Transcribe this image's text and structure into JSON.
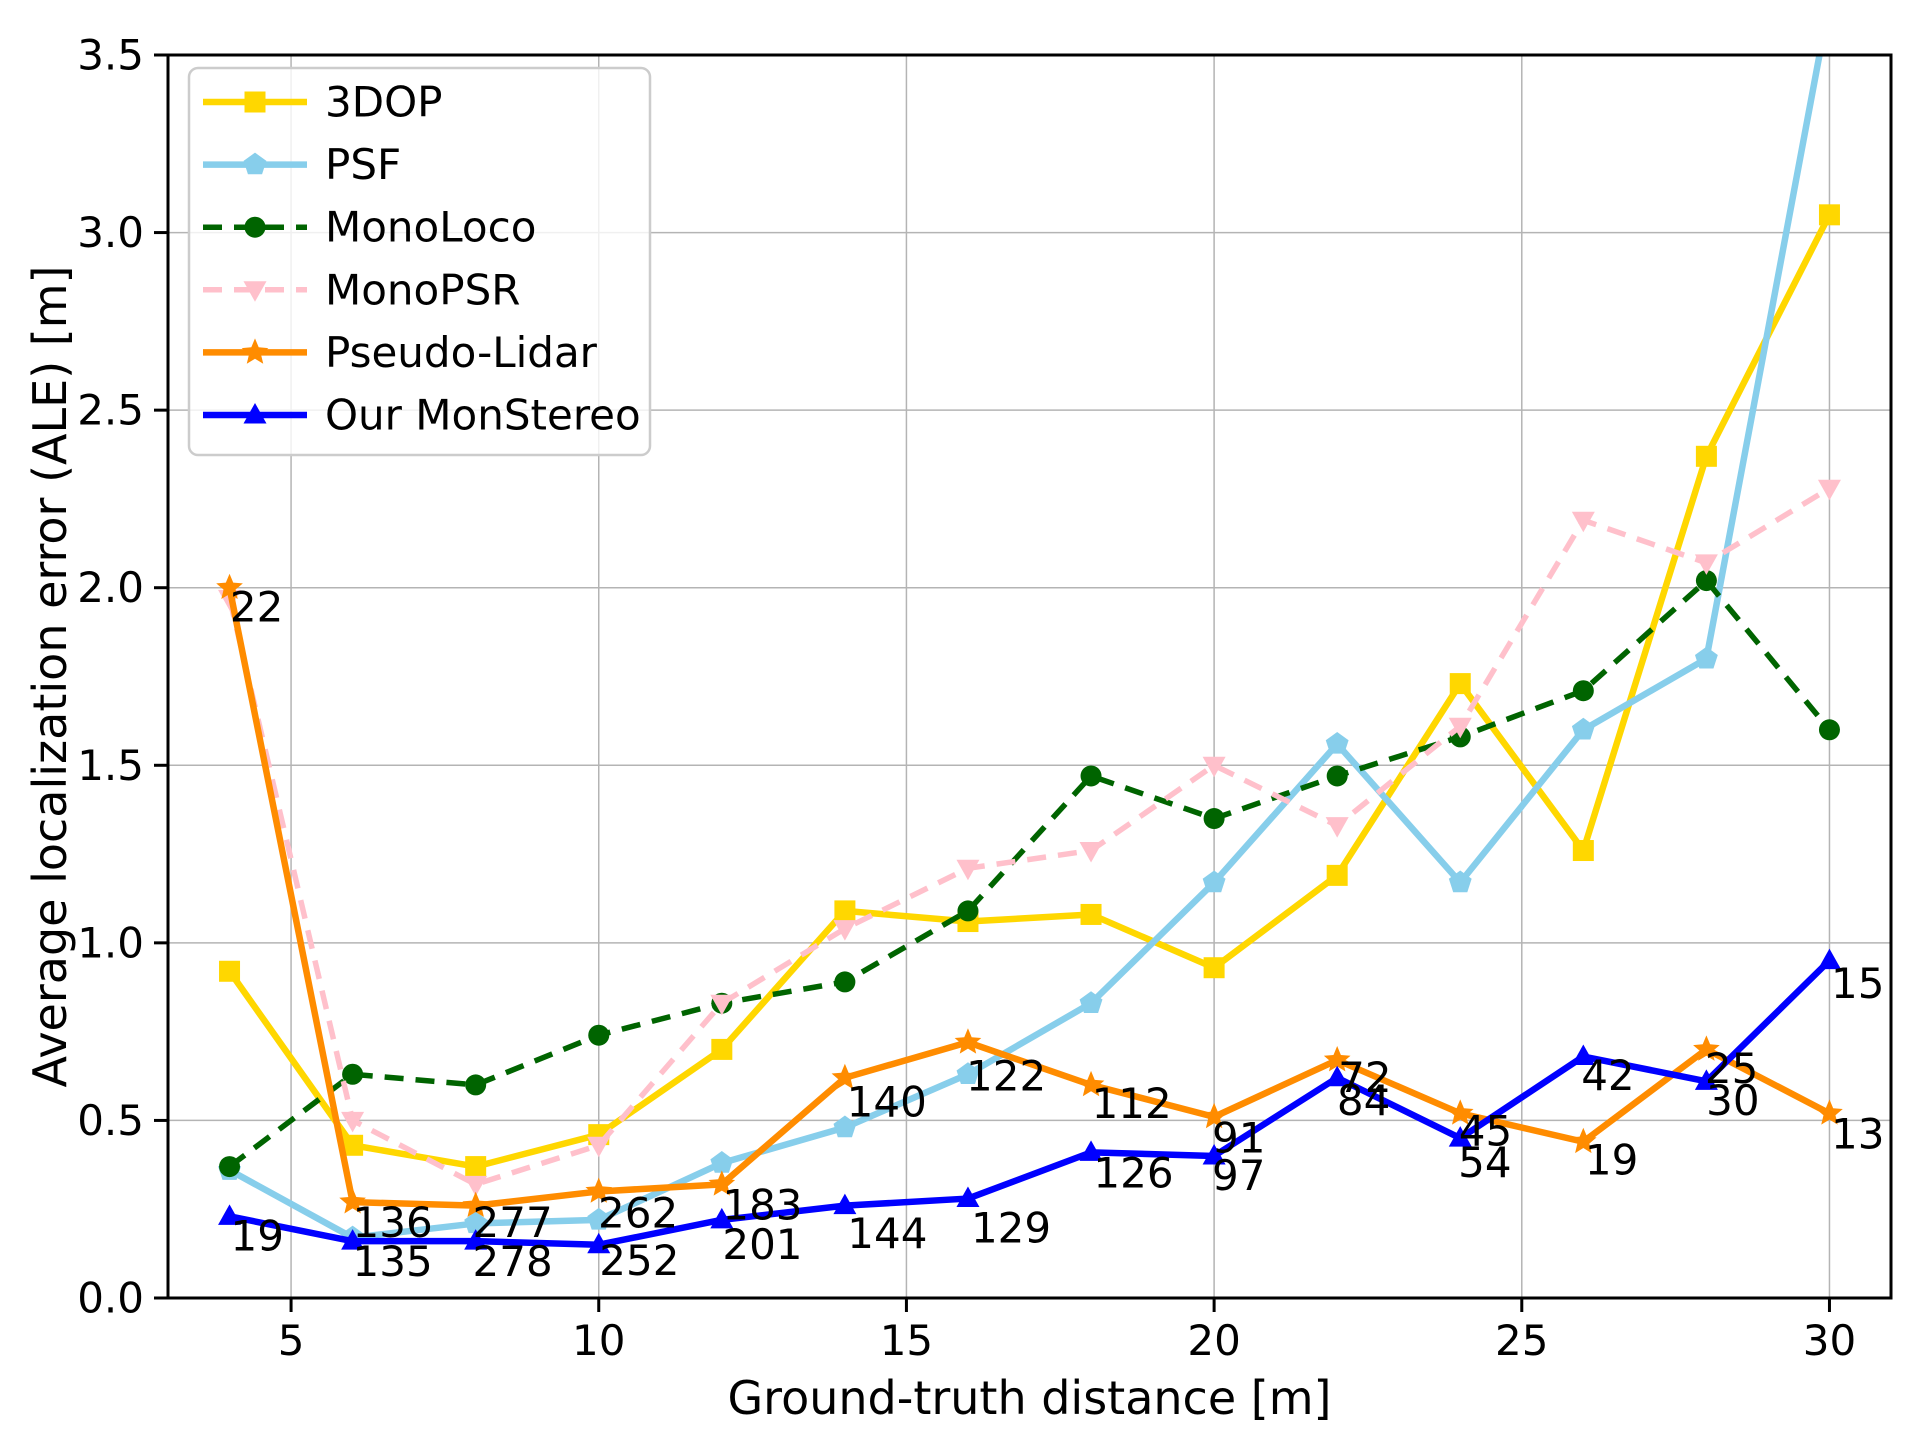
{
  "figure": {
    "background": "#ffffff",
    "text_color": "#000000",
    "grid_color": "#b4b4b4",
    "spine_color": "#000000",
    "legend_border_color": "#cccccc",
    "legend_background": "rgba(255,255,255,0.8)"
  },
  "chart_data": {
    "type": "line",
    "title": "",
    "xlabel": "Ground-truth distance [m]",
    "ylabel": "Average localization error (ALE) [m]",
    "xlim": [
      3.0,
      31.0
    ],
    "ylim": [
      0.0,
      3.5
    ],
    "xticks": [
      5,
      10,
      15,
      20,
      25,
      30
    ],
    "yticks": [
      0.0,
      0.5,
      1.0,
      1.5,
      2.0,
      2.5,
      3.0,
      3.5
    ],
    "grid": true,
    "legend_position": "upper-left",
    "x": [
      4,
      6,
      8,
      10,
      12,
      14,
      16,
      18,
      20,
      22,
      24,
      26,
      28,
      30
    ],
    "series": [
      {
        "name": "3DOP",
        "color": "#FFD700",
        "marker": "square",
        "dash": "solid",
        "values": [
          0.92,
          0.43,
          0.37,
          0.46,
          0.7,
          1.09,
          1.06,
          1.08,
          0.93,
          1.19,
          1.73,
          1.26,
          2.37,
          3.05
        ]
      },
      {
        "name": "PSF",
        "color": "#87CEEB",
        "marker": "pentagon",
        "dash": "solid",
        "values": [
          0.36,
          0.17,
          0.21,
          0.22,
          0.38,
          0.48,
          0.63,
          0.83,
          1.17,
          1.56,
          1.17,
          1.6,
          1.8,
          3.65
        ]
      },
      {
        "name": "MonoLoco",
        "color": "#006400",
        "marker": "circle",
        "dash": "dashed",
        "values": [
          0.37,
          0.63,
          0.6,
          0.74,
          0.83,
          0.89,
          1.09,
          1.47,
          1.35,
          1.47,
          1.58,
          1.71,
          2.02,
          1.6
        ]
      },
      {
        "name": "MonoPSR",
        "color": "#FFC0CB",
        "marker": "triangle-down",
        "dash": "dashed",
        "values": [
          1.97,
          0.5,
          0.32,
          0.43,
          0.83,
          1.04,
          1.21,
          1.26,
          1.5,
          1.33,
          1.61,
          2.19,
          2.07,
          2.28
        ]
      },
      {
        "name": "Pseudo-Lidar",
        "color": "#FF8C00",
        "marker": "star",
        "dash": "solid",
        "values": [
          2.0,
          0.27,
          0.26,
          0.3,
          0.32,
          0.62,
          0.72,
          0.6,
          0.51,
          0.67,
          0.52,
          0.44,
          0.7,
          0.52
        ]
      },
      {
        "name": "Our MonStereo",
        "color": "#0000FF",
        "marker": "triangle-up",
        "dash": "solid",
        "values": [
          0.23,
          0.16,
          0.16,
          0.15,
          0.22,
          0.26,
          0.28,
          0.41,
          0.4,
          0.62,
          0.45,
          0.68,
          0.61,
          0.95
        ]
      }
    ],
    "annotations": [
      {
        "text": "22",
        "x": 4.44,
        "y": 1.945
      },
      {
        "text": "19",
        "x": 4.45,
        "y": 0.175
      },
      {
        "text": "136",
        "x": 6.65,
        "y": 0.212
      },
      {
        "text": "135",
        "x": 6.65,
        "y": 0.103
      },
      {
        "text": "277",
        "x": 8.6,
        "y": 0.212
      },
      {
        "text": "278",
        "x": 8.6,
        "y": 0.103
      },
      {
        "text": "262",
        "x": 10.64,
        "y": 0.24
      },
      {
        "text": "252",
        "x": 10.66,
        "y": 0.105
      },
      {
        "text": "183",
        "x": 12.66,
        "y": 0.262
      },
      {
        "text": "201",
        "x": 12.66,
        "y": 0.15
      },
      {
        "text": "140",
        "x": 14.68,
        "y": 0.552
      },
      {
        "text": "144",
        "x": 14.69,
        "y": 0.182
      },
      {
        "text": "122",
        "x": 16.62,
        "y": 0.625
      },
      {
        "text": "129",
        "x": 16.7,
        "y": 0.197
      },
      {
        "text": "112",
        "x": 18.66,
        "y": 0.548
      },
      {
        "text": "126",
        "x": 18.69,
        "y": 0.352
      },
      {
        "text": "91",
        "x": 20.4,
        "y": 0.45
      },
      {
        "text": "97",
        "x": 20.4,
        "y": 0.345
      },
      {
        "text": "72",
        "x": 22.45,
        "y": 0.621
      },
      {
        "text": "84",
        "x": 22.43,
        "y": 0.556
      },
      {
        "text": "45",
        "x": 24.41,
        "y": 0.47
      },
      {
        "text": "54",
        "x": 24.4,
        "y": 0.382
      },
      {
        "text": "42",
        "x": 26.4,
        "y": 0.627
      },
      {
        "text": "19",
        "x": 26.46,
        "y": 0.388
      },
      {
        "text": "25",
        "x": 28.41,
        "y": 0.646
      },
      {
        "text": "30",
        "x": 28.43,
        "y": 0.556
      },
      {
        "text": "15",
        "x": 30.46,
        "y": 0.886
      },
      {
        "text": "13",
        "x": 30.46,
        "y": 0.462
      }
    ]
  }
}
